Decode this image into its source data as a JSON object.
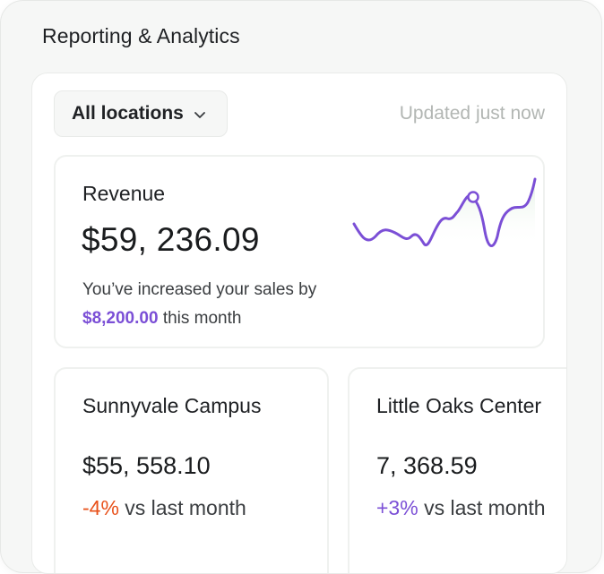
{
  "panel": {
    "title": "Reporting & Analytics"
  },
  "filter": {
    "location_label": "All locations",
    "updated_text": "Updated just now"
  },
  "revenue": {
    "title": "Revenue",
    "amount": "$59, 236.09",
    "message_prefix": "You’ve increased your sales by",
    "increase_amount": "$8,200.00",
    "message_suffix": "this month",
    "sparkline_color": "#7b4fd6",
    "sparkline_fill": "#e7f3e8"
  },
  "locations": [
    {
      "name": "Sunnyvale Campus",
      "amount": "$55, 558.10",
      "change": "-4%",
      "change_suffix": "vs last month",
      "change_color": "#e8511a"
    },
    {
      "name": "Little Oaks Center",
      "amount": "7, 368.59",
      "change": "+3%",
      "change_suffix": "vs last month",
      "change_color": "#7b4fd6"
    }
  ]
}
